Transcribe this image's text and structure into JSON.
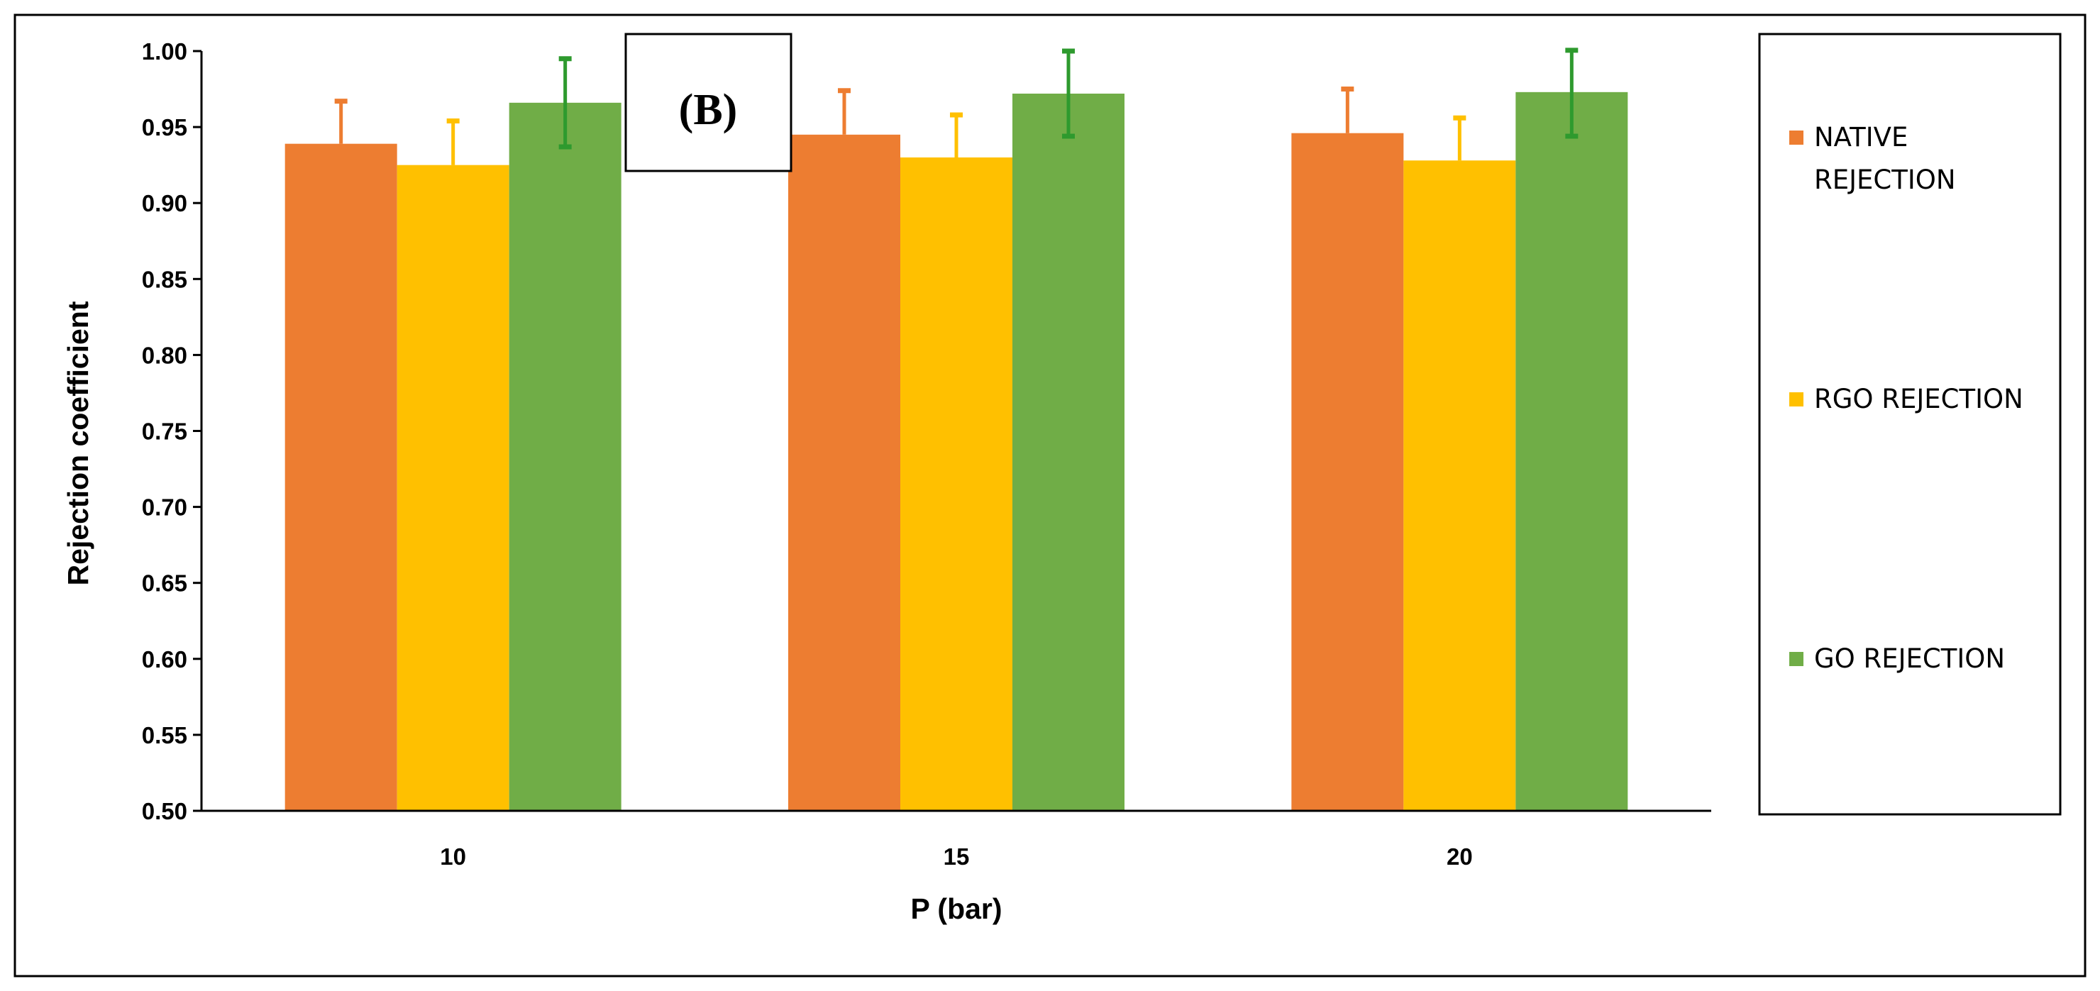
{
  "chart_data": {
    "type": "bar",
    "panel_label": "(B)",
    "xlabel": "P (bar)",
    "ylabel": "Rejection coefficient",
    "categories": [
      "10",
      "15",
      "20"
    ],
    "ylim": [
      0.5,
      1.0
    ],
    "yticks": [
      "0.50",
      "0.55",
      "0.60",
      "0.65",
      "0.70",
      "0.75",
      "0.80",
      "0.85",
      "0.90",
      "0.95",
      "1.00"
    ],
    "grid": false,
    "legend_position": "right",
    "series": [
      {
        "name": "NATIVE REJECTION",
        "legend_lines": [
          "NATIVE",
          "REJECTION"
        ],
        "color": "#ED7D31",
        "error_color": "#ED7D31",
        "values": [
          0.939,
          0.945,
          0.946
        ],
        "errors": [
          0.028,
          0.029,
          0.029
        ]
      },
      {
        "name": "RGO REJECTION",
        "legend_lines": [
          "RGO REJECTION"
        ],
        "color": "#FFC000",
        "error_color": "#FFC000",
        "values": [
          0.925,
          0.93,
          0.928
        ],
        "errors": [
          0.029,
          0.028,
          0.028
        ]
      },
      {
        "name": "GO REJECTION",
        "legend_lines": [
          "GO REJECTION"
        ],
        "color": "#70AD47",
        "error_color": "#2E9A2E",
        "values": [
          0.966,
          0.972,
          0.973
        ],
        "errors": [
          0.029,
          0.028,
          0.029
        ]
      }
    ]
  }
}
